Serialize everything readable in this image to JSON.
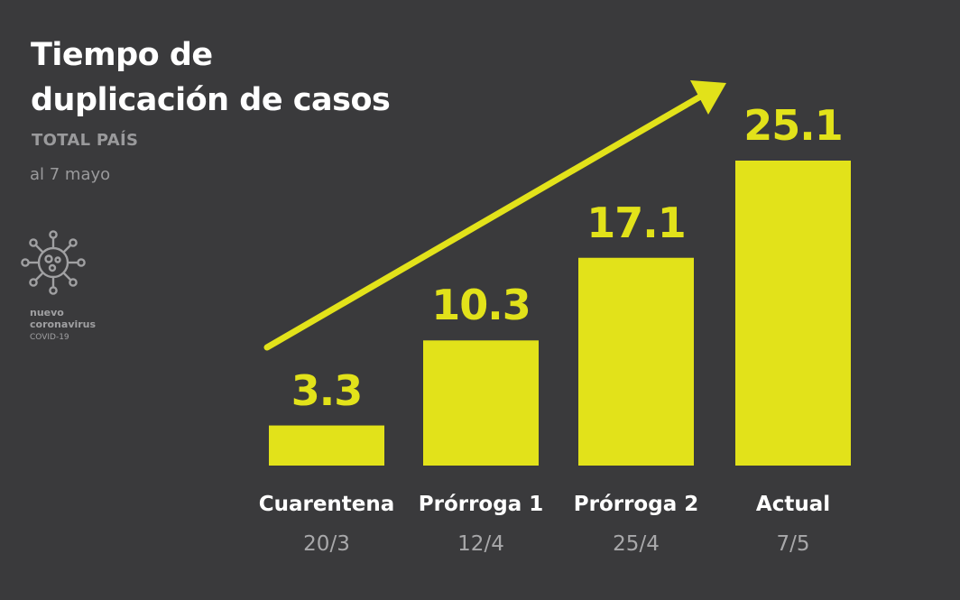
{
  "header": {
    "title_line1": "Tiempo de",
    "title_line2": "duplicación de casos",
    "subtitle": "TOTAL PAÍS",
    "date_note": "al 7 mayo"
  },
  "logo": {
    "icon": "virus-icon",
    "line1": "nuevo",
    "line2": "coronavirus",
    "line3": "COVID-19"
  },
  "colors": {
    "background": "#3a3a3c",
    "accent": "#e2e21a",
    "text": "#ffffff",
    "muted": "#a8a8aa"
  },
  "chart_data": {
    "type": "bar",
    "title": "Tiempo de duplicación de casos",
    "subtitle": "TOTAL PAÍS",
    "categories": [
      "Cuarentena",
      "Prórroga 1",
      "Prórroga 2",
      "Actual"
    ],
    "dates": [
      "20/3",
      "12/4",
      "25/4",
      "7/5"
    ],
    "values": [
      3.3,
      10.3,
      17.1,
      25.1
    ],
    "value_labels": [
      "3.3",
      "10.3",
      "17.1",
      "25.1"
    ],
    "xlabel": "",
    "ylabel": "",
    "ylim": [
      0,
      25.1
    ],
    "grid": false,
    "annotations": [
      "upward trend arrow"
    ]
  }
}
